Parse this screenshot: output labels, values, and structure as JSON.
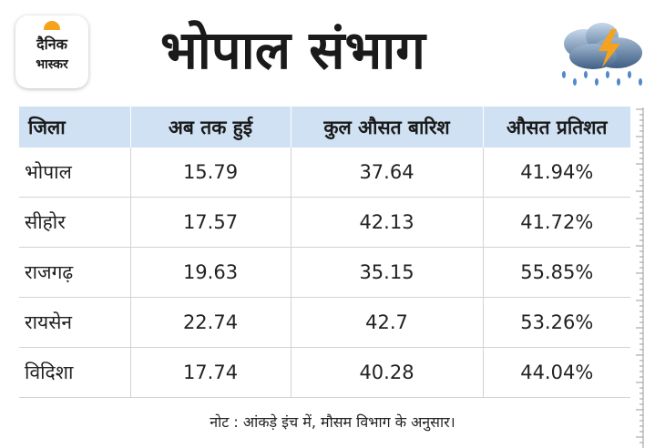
{
  "brand": {
    "line1": "दैनिक",
    "line2": "भास्कर",
    "accent_color": "#f6a21c"
  },
  "title": "भोपाल संभाग",
  "icons": {
    "weather": "storm-cloud-rain-icon"
  },
  "table": {
    "header_bg": "#cfe1f3",
    "headers": [
      "जिला",
      "अब तक हुई",
      "कुल औसत बारिश",
      "औसत प्रतिशत"
    ],
    "rows": [
      [
        "भोपाल",
        "15.79",
        "37.64",
        "41.94%"
      ],
      [
        "सीहोर",
        "17.57",
        "42.13",
        "41.72%"
      ],
      [
        "राजगढ़",
        "19.63",
        "35.15",
        "55.85%"
      ],
      [
        "रायसेन",
        "22.74",
        "42.7",
        "53.26%"
      ],
      [
        "विदिशा",
        "17.74",
        "40.28",
        "44.04%"
      ]
    ]
  },
  "note": "नोट : आंकड़े इंच में, मौसम विभाग के अनुसार।"
}
